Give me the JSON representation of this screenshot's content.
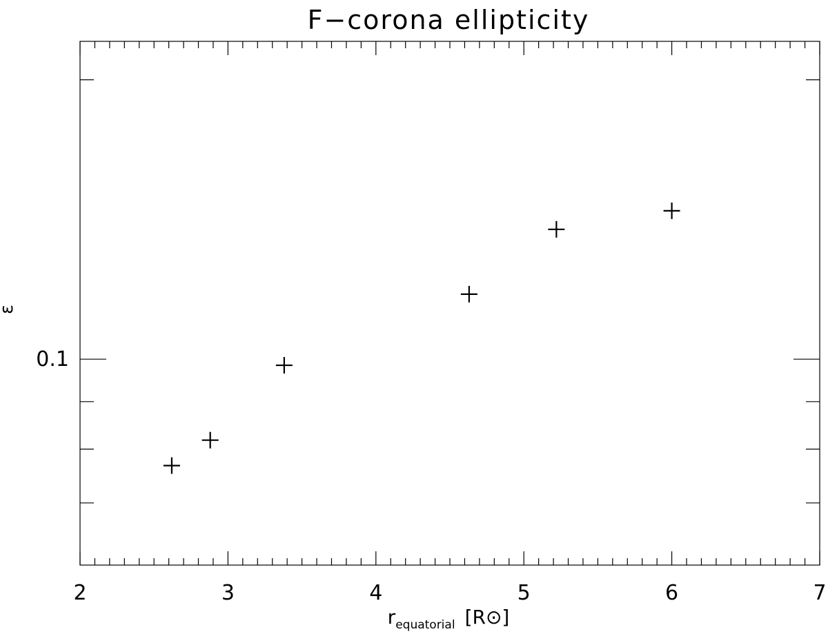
{
  "chart_data": {
    "type": "scatter",
    "title": "F−corona ellipticity",
    "xlabel": {
      "main": "r",
      "subscript": "equatorial",
      "unit": "[R⊙]"
    },
    "ylabel": "ε",
    "xlim": [
      2,
      7
    ],
    "x_major_ticks": [
      2,
      3,
      4,
      5,
      6,
      7
    ],
    "x_tick_labels": [
      "2",
      "3",
      "4",
      "5",
      "6",
      "7"
    ],
    "x_minor_step": 0.1,
    "y_scale": "log",
    "ylim": [
      0.06,
      0.22
    ],
    "y_major_ticks": [
      0.1
    ],
    "y_tick_labels": [
      "0.1"
    ],
    "y_minor_ticks": [
      0.07,
      0.08,
      0.09,
      0.2
    ],
    "marker": "plus",
    "points": [
      {
        "x": 2.62,
        "y": 0.0768
      },
      {
        "x": 2.88,
        "y": 0.0818
      },
      {
        "x": 3.38,
        "y": 0.0985
      },
      {
        "x": 4.63,
        "y": 0.1175
      },
      {
        "x": 5.22,
        "y": 0.138
      },
      {
        "x": 6.0,
        "y": 0.1445
      }
    ]
  }
}
